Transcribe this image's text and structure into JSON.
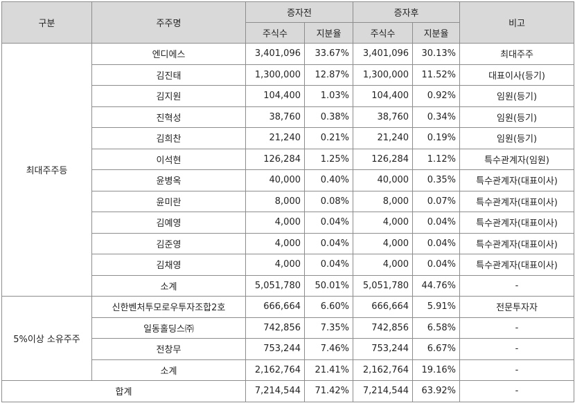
{
  "headers": {
    "category": "구분",
    "shareholder": "주주명",
    "before": "증자전",
    "after": "증자후",
    "shares": "주식수",
    "ratio": "지분율",
    "note": "비고"
  },
  "groups": [
    {
      "name": "최대주주등",
      "rows": [
        {
          "name": "엔디에스",
          "shares_before": "3,401,096",
          "ratio_before": "33.67%",
          "shares_after": "3,401,096",
          "ratio_after": "30.13%",
          "note": "최대주주"
        },
        {
          "name": "김진태",
          "shares_before": "1,300,000",
          "ratio_before": "12.87%",
          "shares_after": "1,300,000",
          "ratio_after": "11.52%",
          "note": "대표이사(등기)"
        },
        {
          "name": "김지원",
          "shares_before": "104,400",
          "ratio_before": "1.03%",
          "shares_after": "104,400",
          "ratio_after": "0.92%",
          "note": "임원(등기)"
        },
        {
          "name": "진혁성",
          "shares_before": "38,760",
          "ratio_before": "0.38%",
          "shares_after": "38,760",
          "ratio_after": "0.34%",
          "note": "임원(등기)"
        },
        {
          "name": "김희찬",
          "shares_before": "21,240",
          "ratio_before": "0.21%",
          "shares_after": "21,240",
          "ratio_after": "0.19%",
          "note": "임원(등기)"
        },
        {
          "name": "이석현",
          "shares_before": "126,284",
          "ratio_before": "1.25%",
          "shares_after": "126,284",
          "ratio_after": "1.12%",
          "note": "특수관계자(임원)"
        },
        {
          "name": "윤병옥",
          "shares_before": "40,000",
          "ratio_before": "0.40%",
          "shares_after": "40,000",
          "ratio_after": "0.35%",
          "note": "특수관계자(대표이사)"
        },
        {
          "name": "윤미란",
          "shares_before": "8,000",
          "ratio_before": "0.08%",
          "shares_after": "8,000",
          "ratio_after": "0.07%",
          "note": "특수관계자(대표이사)"
        },
        {
          "name": "김예영",
          "shares_before": "4,000",
          "ratio_before": "0.04%",
          "shares_after": "4,000",
          "ratio_after": "0.04%",
          "note": "특수관계자(대표이사)"
        },
        {
          "name": "김준영",
          "shares_before": "4,000",
          "ratio_before": "0.04%",
          "shares_after": "4,000",
          "ratio_after": "0.04%",
          "note": "특수관계자(대표이사)"
        },
        {
          "name": "김채영",
          "shares_before": "4,000",
          "ratio_before": "0.04%",
          "shares_after": "4,000",
          "ratio_after": "0.04%",
          "note": "특수관계자(대표이사)"
        },
        {
          "name": "소계",
          "shares_before": "5,051,780",
          "ratio_before": "50.01%",
          "shares_after": "5,051,780",
          "ratio_after": "44.76%",
          "note": "-"
        }
      ]
    },
    {
      "name": "5%이상 소유주주",
      "rows": [
        {
          "name": "신한벤처투모로우투자조합2호",
          "shares_before": "666,664",
          "ratio_before": "6.60%",
          "shares_after": "666,664",
          "ratio_after": "5.91%",
          "note": "전문투자자"
        },
        {
          "name": "일동홀딩스㈜",
          "shares_before": "742,856",
          "ratio_before": "7.35%",
          "shares_after": "742,856",
          "ratio_after": "6.58%",
          "note": "-"
        },
        {
          "name": "전창무",
          "shares_before": "753,244",
          "ratio_before": "7.46%",
          "shares_after": "753,244",
          "ratio_after": "6.67%",
          "note": "-"
        },
        {
          "name": "소계",
          "shares_before": "2,162,764",
          "ratio_before": "21.41%",
          "shares_after": "2,162,764",
          "ratio_after": "19.16%",
          "note": "-"
        }
      ]
    }
  ],
  "total": {
    "label": "합계",
    "shares_before": "7,214,544",
    "ratio_before": "71.42%",
    "shares_after": "7,214,544",
    "ratio_after": "63.92%",
    "note": "-"
  }
}
